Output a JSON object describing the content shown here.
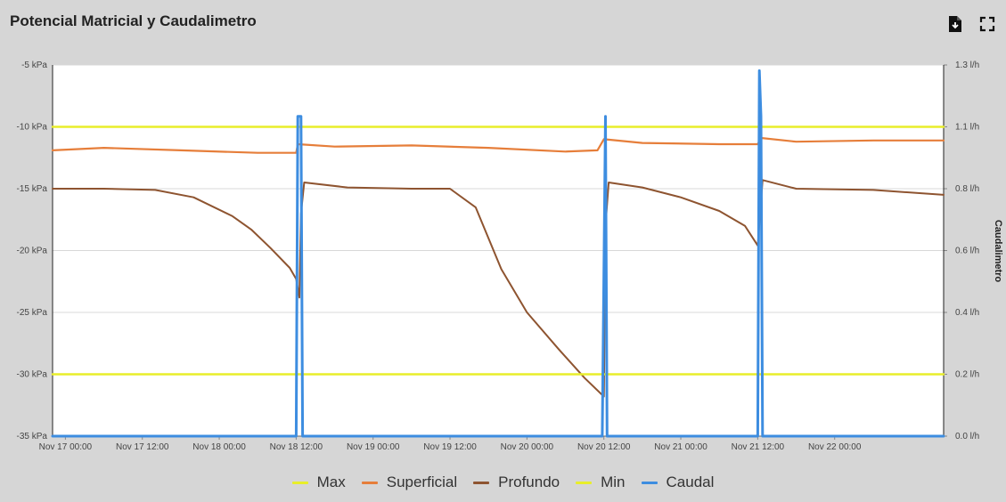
{
  "header": {
    "title": "Potencial Matricial y Caudalimetro",
    "export_icon": "export-document-icon",
    "fullscreen_icon": "fullscreen-icon"
  },
  "chart_data": {
    "type": "line",
    "title": "Potencial Matricial y Caudalimetro",
    "xlabel": "",
    "ylabel_left": "",
    "ylabel_right": "Caudalimetro",
    "ylim_left": [
      -35,
      -5
    ],
    "ylim_right": [
      0.0,
      1.3
    ],
    "yticks_left": [
      "-5 kPa",
      "-10 kPa",
      "-15 kPa",
      "-20 kPa",
      "-25 kPa",
      "-30 kPa",
      "-35 kPa"
    ],
    "yticks_right": [
      "1.3 l/h",
      "1.1 l/h",
      "0.8 l/h",
      "0.6 l/h",
      "0.4 l/h",
      "0.2 l/h",
      "0.0 l/h"
    ],
    "xlim": [
      "Nov 16 22:00",
      "Nov 22 17:00"
    ],
    "xticks": [
      "Nov 17 00:00",
      "Nov 17 12:00",
      "Nov 18 00:00",
      "Nov 18 12:00",
      "Nov 19 00:00",
      "Nov 19 12:00",
      "Nov 20 00:00",
      "Nov 20 12:00",
      "Nov 21 00:00",
      "Nov 21 12:00",
      "Nov 22 00:00"
    ],
    "grid": true,
    "legend_position": "bottom-center",
    "series": [
      {
        "name": "Max",
        "axis": "left",
        "color": "#e8ee2a",
        "points": [
          [
            "Nov 16 22:00",
            -10
          ],
          [
            "Nov 22 17:00",
            -10
          ]
        ]
      },
      {
        "name": "Superficial",
        "axis": "left",
        "color": "#e67e3a",
        "points": [
          [
            "Nov 16 22:00",
            -11.9
          ],
          [
            "Nov 17 06:00",
            -11.7
          ],
          [
            "Nov 17 18:00",
            -11.9
          ],
          [
            "Nov 18 06:00",
            -12.1
          ],
          [
            "Nov 18 12:00",
            -12.1
          ],
          [
            "Nov 18 12:15",
            -11.4
          ],
          [
            "Nov 18 18:00",
            -11.6
          ],
          [
            "Nov 19 06:00",
            -11.5
          ],
          [
            "Nov 19 18:00",
            -11.7
          ],
          [
            "Nov 20 06:00",
            -12.0
          ],
          [
            "Nov 20 11:00",
            -11.9
          ],
          [
            "Nov 20 12:00",
            -11.0
          ],
          [
            "Nov 20 18:00",
            -11.3
          ],
          [
            "Nov 21 06:00",
            -11.4
          ],
          [
            "Nov 21 12:00",
            -11.4
          ],
          [
            "Nov 21 12:30",
            -10.9
          ],
          [
            "Nov 21 18:00",
            -11.2
          ],
          [
            "Nov 22 06:00",
            -11.1
          ],
          [
            "Nov 22 17:00",
            -11.1
          ]
        ]
      },
      {
        "name": "Profundo",
        "axis": "left",
        "color": "#8e5430",
        "points": [
          [
            "Nov 16 22:00",
            -15.0
          ],
          [
            "Nov 17 06:00",
            -15.0
          ],
          [
            "Nov 17 14:00",
            -15.1
          ],
          [
            "Nov 17 20:00",
            -15.7
          ],
          [
            "Nov 18 02:00",
            -17.2
          ],
          [
            "Nov 18 05:00",
            -18.3
          ],
          [
            "Nov 18 08:00",
            -19.8
          ],
          [
            "Nov 18 11:00",
            -21.4
          ],
          [
            "Nov 18 12:00",
            -22.3
          ],
          [
            "Nov 18 12:30",
            -23.8
          ],
          [
            "Nov 18 12:45",
            -17.0
          ],
          [
            "Nov 18 13:15",
            -14.5
          ],
          [
            "Nov 18 20:00",
            -14.9
          ],
          [
            "Nov 19 06:00",
            -15.0
          ],
          [
            "Nov 19 12:00",
            -15.0
          ],
          [
            "Nov 19 16:00",
            -16.5
          ],
          [
            "Nov 19 20:00",
            -21.5
          ],
          [
            "Nov 20 00:00",
            -25.0
          ],
          [
            "Nov 20 05:00",
            -28.0
          ],
          [
            "Nov 20 09:00",
            -30.3
          ],
          [
            "Nov 20 12:00",
            -31.8
          ],
          [
            "Nov 20 12:15",
            -18.0
          ],
          [
            "Nov 20 12:45",
            -14.5
          ],
          [
            "Nov 20 18:00",
            -14.9
          ],
          [
            "Nov 21 00:00",
            -15.7
          ],
          [
            "Nov 21 06:00",
            -16.8
          ],
          [
            "Nov 21 10:00",
            -18.0
          ],
          [
            "Nov 21 12:00",
            -19.6
          ],
          [
            "Nov 21 12:45",
            -14.3
          ],
          [
            "Nov 21 18:00",
            -15.0
          ],
          [
            "Nov 22 06:00",
            -15.1
          ],
          [
            "Nov 22 17:00",
            -15.5
          ]
        ]
      },
      {
        "name": "Min",
        "axis": "left",
        "color": "#e8ee2a",
        "points": [
          [
            "Nov 16 22:00",
            -30
          ],
          [
            "Nov 22 17:00",
            -30
          ]
        ]
      },
      {
        "name": "Caudal",
        "axis": "right",
        "color": "#3d8de0",
        "points": [
          [
            "Nov 16 22:00",
            0.0
          ],
          [
            "Nov 18 12:00",
            0.0
          ],
          [
            "Nov 18 12:15",
            1.12
          ],
          [
            "Nov 18 12:45",
            1.12
          ],
          [
            "Nov 18 13:00",
            0.0
          ],
          [
            "Nov 20 11:45",
            0.0
          ],
          [
            "Nov 20 12:15",
            1.12
          ],
          [
            "Nov 20 12:30",
            0.0
          ],
          [
            "Nov 21 12:00",
            0.0
          ],
          [
            "Nov 21 12:15",
            1.28
          ],
          [
            "Nov 21 12:30",
            1.12
          ],
          [
            "Nov 21 12:45",
            0.0
          ],
          [
            "Nov 22 17:00",
            0.0
          ]
        ]
      }
    ]
  }
}
